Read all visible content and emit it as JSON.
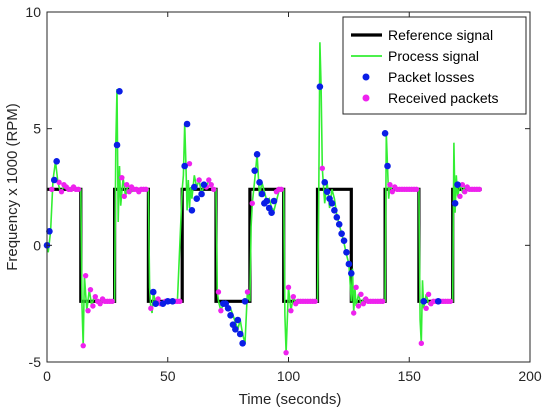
{
  "chart_data": {
    "type": "line",
    "xlabel": "Time (seconds)",
    "ylabel": "Frequency x 1000 (RPM)",
    "xlim": [
      0,
      200
    ],
    "ylim": [
      -5,
      10
    ],
    "xticks": [
      "0",
      "50",
      "100",
      "150",
      "200"
    ],
    "yticks": [
      "-5",
      "0",
      "5",
      "10"
    ],
    "grid": false,
    "legend_placement": "top-right",
    "legend": [
      {
        "label": "Reference signal",
        "kind": "line",
        "color": "#000000"
      },
      {
        "label": "Process signal",
        "kind": "line",
        "color": "#33ee33"
      },
      {
        "label": "Packet losses",
        "kind": "marker",
        "color": "#0a1ee6"
      },
      {
        "label": "Received packets",
        "kind": "marker",
        "color": "#ee22ee"
      }
    ],
    "reference_signal": {
      "x": [
        0,
        14,
        14,
        28,
        28,
        42,
        42,
        56,
        56,
        70,
        70,
        84,
        84,
        98,
        98,
        112,
        112,
        126,
        126,
        140,
        140,
        154,
        154,
        168,
        168,
        180
      ],
      "y": [
        2.4,
        2.4,
        -2.4,
        -2.4,
        2.4,
        2.4,
        -2.4,
        -2.4,
        2.4,
        2.4,
        -2.4,
        -2.4,
        2.4,
        2.4,
        -2.4,
        -2.4,
        2.4,
        2.4,
        -2.4,
        -2.4,
        2.4,
        2.4,
        -2.4,
        -2.4,
        2.4,
        2.4
      ]
    },
    "process_signal": {
      "x": [
        0,
        0.5,
        1.5,
        2.5,
        3.5,
        4.5,
        5.5,
        7,
        9,
        11,
        13,
        14,
        14.5,
        15,
        15.5,
        16.5,
        17.5,
        18.5,
        19.5,
        21,
        23,
        25,
        27,
        28,
        28.5,
        29,
        29.5,
        30,
        30.5,
        31.5,
        32.5,
        33.5,
        35,
        37,
        39,
        41,
        42,
        42.5,
        43,
        43.5,
        44,
        45,
        46,
        47,
        48,
        50,
        52,
        54,
        56,
        56.5,
        57,
        57.5,
        58,
        58.5,
        59,
        59.5,
        60,
        61,
        62,
        63,
        64,
        65,
        66,
        67,
        68,
        69,
        70,
        70.5,
        71,
        72,
        73,
        74,
        75,
        76,
        77,
        78,
        79,
        80,
        81,
        82,
        83,
        84,
        84.5,
        85,
        86,
        87,
        88,
        89,
        90,
        91,
        92,
        93,
        94,
        95,
        96,
        97,
        98,
        98.5,
        99,
        100,
        101,
        102,
        103,
        104,
        106,
        108,
        110,
        112,
        112.5,
        113,
        113.5,
        114,
        115,
        116,
        117,
        118,
        119,
        120,
        121,
        122,
        123,
        124,
        125,
        126,
        126.5,
        127,
        127.5,
        128,
        129,
        130,
        131,
        132,
        134,
        136,
        138,
        140,
        140.5,
        141,
        141.5,
        142,
        143,
        144,
        145,
        146,
        148,
        150,
        152,
        154,
        154.5,
        155,
        155.5,
        156,
        157,
        158,
        159,
        160,
        162,
        164,
        166,
        168,
        168.5,
        169,
        169.5,
        170,
        171,
        172,
        173,
        174,
        176,
        178,
        180
      ],
      "y": [
        0,
        -0.3,
        0.6,
        2.8,
        3.6,
        2.7,
        2.3,
        2.5,
        2.4,
        2.4,
        2.4,
        2.4,
        -2.6,
        -4.3,
        -1.3,
        -2.8,
        -1.9,
        -2.6,
        -2.2,
        -2.4,
        -2.4,
        -2.4,
        -2.4,
        -2.4,
        4.3,
        6.7,
        1.0,
        3.4,
        1.7,
        2.9,
        2.1,
        2.6,
        2.3,
        2.4,
        2.4,
        2.4,
        2.4,
        -1.8,
        -2.7,
        -2.9,
        -2.0,
        -2.5,
        -2.3,
        -2.5,
        -2.4,
        -2.4,
        -2.4,
        -2.4,
        2.4,
        3.0,
        5.2,
        3.5,
        1.5,
        2.8,
        1.6,
        2.5,
        2.0,
        3.0,
        2.5,
        2.8,
        2.2,
        2.6,
        2.5,
        2.8,
        2.6,
        2.4,
        2.4,
        -2.0,
        -2.4,
        -2.8,
        -2.5,
        -2.4,
        -2.6,
        -2.7,
        -3.0,
        -3.3,
        -3.6,
        -3.2,
        -3.8,
        -4.2,
        -2.0,
        -2.4,
        0.8,
        1.8,
        2.8,
        3.9,
        2.1,
        2.7,
        2.3,
        1.9,
        2.0,
        1.6,
        1.5,
        1.9,
        2.3,
        2.4,
        2.4,
        -3.0,
        -4.6,
        -1.8,
        -2.8,
        -2.2,
        -2.5,
        -2.4,
        -2.4,
        -2.4,
        -2.4,
        -2.4,
        1.8,
        8.7,
        6.8,
        3.3,
        1.8,
        2.7,
        1.6,
        2.4,
        2.0,
        1.3,
        0.9,
        0.5,
        0.1,
        -0.4,
        -0.8,
        -2.4,
        -1.0,
        -2.9,
        -1.8,
        -2.6,
        -2.1,
        -2.5,
        -2.3,
        -2.4,
        -2.4,
        -2.4,
        -2.4,
        -2.4,
        4.8,
        3.4,
        2.0,
        2.6,
        2.3,
        2.5,
        2.4,
        2.4,
        2.4,
        2.4,
        2.4,
        2.4,
        -3.2,
        -4.2,
        -1.5,
        -2.7,
        -2.1,
        -2.5,
        -2.4,
        -2.4,
        -2.4,
        -2.4,
        -2.4,
        -2.4,
        4.4,
        1.4,
        3.0,
        2.1,
        2.6,
        2.3,
        2.5,
        2.4,
        2.4,
        2.4,
        2.4
      ]
    },
    "packet_losses": {
      "x": [
        0,
        1,
        3,
        4,
        29,
        30,
        44,
        45,
        48,
        50,
        52,
        57,
        58,
        60,
        61,
        62,
        64,
        65,
        73,
        74,
        75,
        76,
        77,
        78,
        79,
        80,
        81,
        82,
        86,
        87,
        88,
        89,
        90,
        91,
        92,
        93,
        94,
        113,
        115,
        116,
        117,
        118,
        119,
        120,
        121,
        122,
        123,
        124,
        125,
        126,
        140,
        141,
        156,
        162,
        169,
        170
      ],
      "y": [
        0,
        0.6,
        2.8,
        3.6,
        4.3,
        6.6,
        -2.0,
        -2.5,
        -2.5,
        -2.4,
        -2.4,
        3.4,
        5.2,
        1.5,
        2.5,
        2.0,
        2.2,
        2.6,
        -2.5,
        -2.5,
        -2.7,
        -3.0,
        -3.4,
        -3.6,
        -3.2,
        -3.8,
        -4.2,
        -2.4,
        3.2,
        3.9,
        2.7,
        2.2,
        1.8,
        1.9,
        1.6,
        1.4,
        1.9,
        6.8,
        2.7,
        2.3,
        2.0,
        1.8,
        1.5,
        1.2,
        0.9,
        0.5,
        0.2,
        -0.3,
        -0.8,
        -1.2,
        4.8,
        3.4,
        -2.4,
        -2.4,
        1.8,
        2.6
      ]
    },
    "received_packets": {
      "x": [
        2,
        5,
        6,
        7,
        8,
        9,
        10,
        11,
        12,
        13,
        15,
        16,
        17,
        18,
        19,
        20,
        21,
        22,
        23,
        24,
        25,
        26,
        27,
        31,
        32,
        33,
        34,
        35,
        36,
        37,
        38,
        39,
        40,
        41,
        43,
        46,
        47,
        49,
        51,
        53,
        54,
        55,
        59,
        63,
        66,
        67,
        68,
        69,
        71,
        72,
        83,
        85,
        95,
        96,
        97,
        99,
        100,
        101,
        102,
        103,
        104,
        105,
        106,
        107,
        108,
        109,
        110,
        111,
        114,
        127,
        128,
        129,
        130,
        131,
        132,
        133,
        134,
        135,
        136,
        137,
        138,
        139,
        142,
        143,
        144,
        145,
        146,
        147,
        148,
        149,
        150,
        151,
        152,
        153,
        155,
        157,
        158,
        159,
        160,
        161,
        163,
        164,
        165,
        166,
        167,
        171,
        172,
        173,
        174,
        175,
        176,
        177,
        178,
        179
      ],
      "y": [
        2.4,
        2.7,
        2.3,
        2.6,
        2.5,
        2.4,
        2.4,
        2.5,
        2.4,
        2.4,
        -4.3,
        -1.3,
        -2.8,
        -1.9,
        -2.6,
        -2.2,
        -2.4,
        -2.5,
        -2.3,
        -2.4,
        -2.4,
        -2.4,
        -2.4,
        2.9,
        2.1,
        2.6,
        2.3,
        2.5,
        2.4,
        2.4,
        2.3,
        2.4,
        2.4,
        2.4,
        -2.7,
        -2.3,
        -2.5,
        -2.4,
        -2.4,
        -2.4,
        -2.4,
        -2.4,
        3.5,
        2.8,
        2.5,
        2.8,
        2.6,
        2.4,
        -2.0,
        -2.8,
        -2.0,
        1.8,
        2.3,
        2.4,
        2.4,
        -4.6,
        -1.8,
        -2.8,
        -2.2,
        -2.5,
        -2.4,
        -2.4,
        -2.4,
        -2.4,
        -2.4,
        -2.4,
        -2.4,
        -2.4,
        3.3,
        -2.9,
        -1.8,
        -2.6,
        -2.1,
        -2.5,
        -2.3,
        -2.4,
        -2.4,
        -2.4,
        -2.4,
        -2.4,
        -2.4,
        -2.4,
        2.6,
        2.3,
        2.5,
        2.4,
        2.4,
        2.4,
        2.4,
        2.4,
        2.4,
        2.4,
        2.4,
        2.4,
        -4.2,
        -2.7,
        -2.1,
        -2.5,
        -2.4,
        -2.4,
        -2.4,
        -2.4,
        -2.4,
        -2.4,
        -2.4,
        2.1,
        2.6,
        2.3,
        2.5,
        2.4,
        2.4,
        2.4,
        2.4,
        2.4
      ]
    }
  }
}
